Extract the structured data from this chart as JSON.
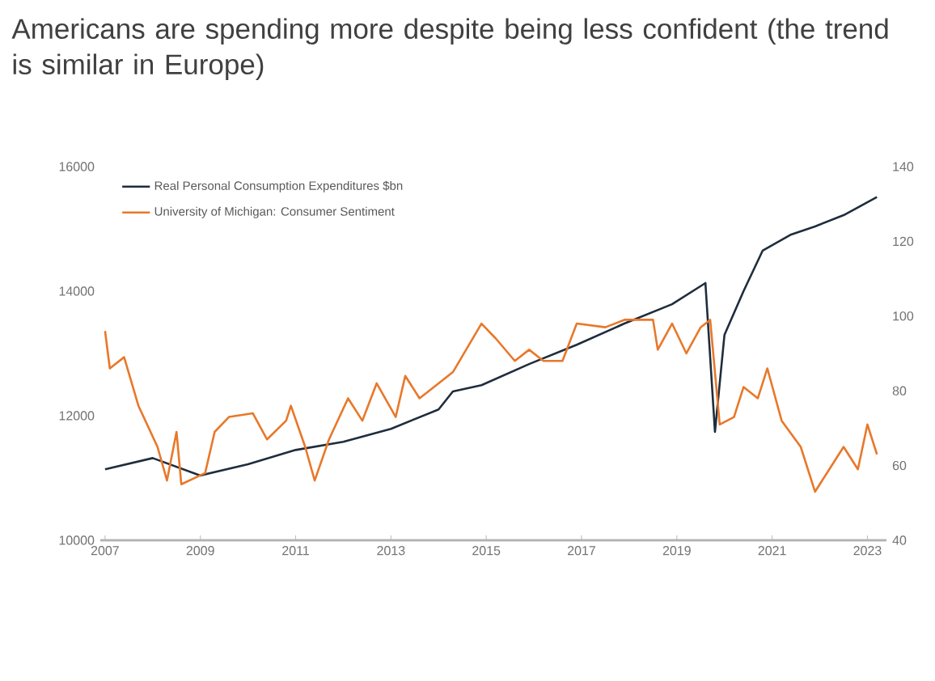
{
  "chart_data": {
    "type": "line",
    "title": "Americans are spending more despite being less confident (the trend is similar in Europe)",
    "xlim": [
      2006.9,
      2023.4
    ],
    "xticks": [
      2007,
      2009,
      2011,
      2013,
      2015,
      2017,
      2019,
      2021,
      2023
    ],
    "ylim": [
      10000,
      16000
    ],
    "yticks": [
      10000,
      12000,
      14000,
      16000
    ],
    "y2lim": [
      40,
      140
    ],
    "y2ticks": [
      40,
      60,
      80,
      100,
      120,
      140
    ],
    "legend": "top left",
    "series": [
      {
        "name": "Real Personal Consumption Expenditures $bn",
        "color": "#1f2d3d",
        "x": [
          2007.0,
          2008.0,
          2009.0,
          2010.0,
          2011.0,
          2012.0,
          2013.0,
          2014.0,
          2014.3,
          2014.9,
          2015.9,
          2016.9,
          2017.9,
          2018.9,
          2019.6,
          2019.8,
          2020.0,
          2020.4,
          2020.8,
          2021.4,
          2021.9,
          2022.5,
          2023.2
        ],
        "values": [
          11140,
          11320,
          11040,
          11220,
          11450,
          11580,
          11790,
          12100,
          12390,
          12490,
          12830,
          13140,
          13480,
          13790,
          14130,
          11740,
          13300,
          14000,
          14650,
          14910,
          15040,
          15220,
          15510
        ]
      },
      {
        "name": "University of Michigan: Consumer Sentiment",
        "color": "#e8782a",
        "axis": "y2",
        "x": [
          2007.0,
          2007.1,
          2007.4,
          2007.7,
          2008.1,
          2008.3,
          2008.5,
          2008.6,
          2009.1,
          2009.3,
          2009.6,
          2010.1,
          2010.4,
          2010.8,
          2010.9,
          2011.2,
          2011.4,
          2011.7,
          2012.1,
          2012.4,
          2012.7,
          2013.1,
          2013.3,
          2013.6,
          2014.0,
          2014.3,
          2014.9,
          2015.2,
          2015.6,
          2015.9,
          2016.2,
          2016.6,
          2016.9,
          2017.5,
          2017.9,
          2018.5,
          2018.6,
          2018.9,
          2019.2,
          2019.5,
          2019.7,
          2019.9,
          2020.2,
          2020.4,
          2020.7,
          2020.9,
          2021.2,
          2021.6,
          2021.9,
          2022.2,
          2022.5,
          2022.8,
          2023.0,
          2023.2
        ],
        "values": [
          96,
          86,
          89,
          76,
          65,
          56,
          69,
          55,
          58,
          69,
          73,
          74,
          67,
          72,
          76,
          65,
          56,
          67,
          78,
          72,
          82,
          73,
          84,
          78,
          82,
          85,
          98,
          94,
          88,
          91,
          88,
          88,
          98,
          97,
          99,
          99,
          91,
          98,
          90,
          97,
          99,
          71,
          73,
          81,
          78,
          86,
          72,
          65,
          53,
          59,
          65,
          59,
          71,
          63
        ]
      }
    ]
  }
}
